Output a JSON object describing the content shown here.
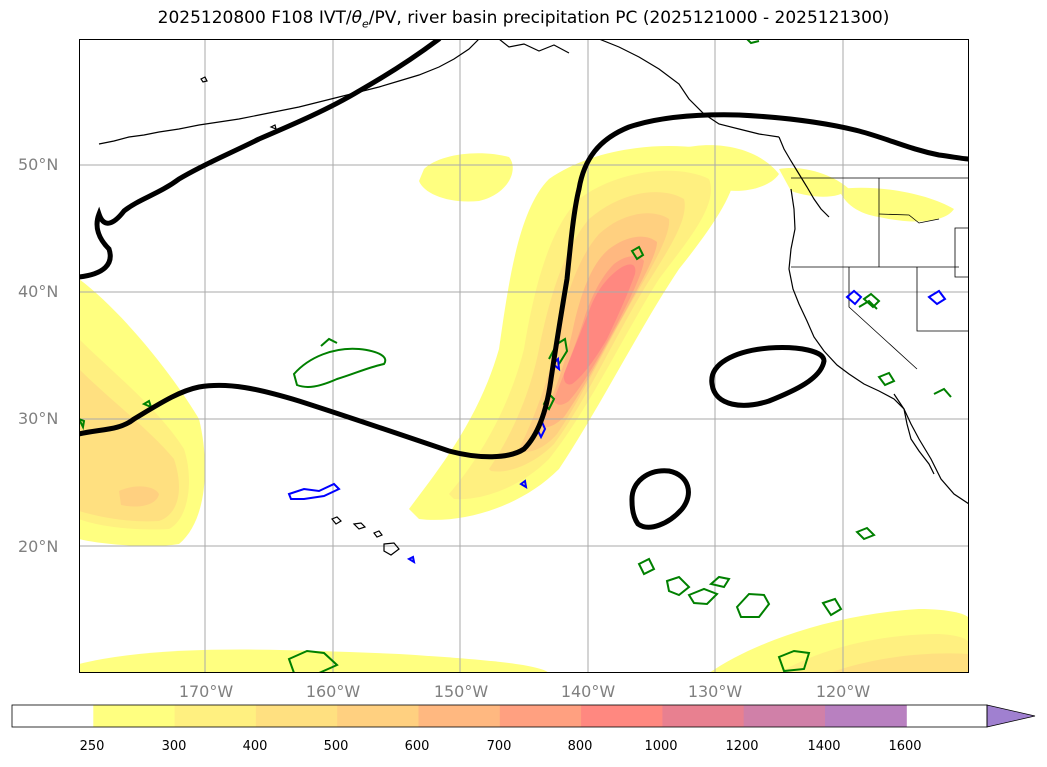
{
  "title": {
    "main": "2025120800 F108 IVT/",
    "theta": "θ",
    "theta_sub": "e",
    "rest": "/PV, river basin precipitation PC (2025121000 - 2025121300)"
  },
  "lat_labels": [
    "50°N",
    "40°N",
    "30°N",
    "20°N"
  ],
  "lon_labels": [
    "170°W",
    "160°W",
    "150°W",
    "140°W",
    "130°W",
    "120°W"
  ],
  "colorbar": {
    "levels": [
      "250",
      "300",
      "400",
      "500",
      "600",
      "700",
      "800",
      "1000",
      "1200",
      "1400",
      "1600"
    ],
    "colors": [
      "#ffffff",
      "#ffff80",
      "#fff080",
      "#ffe080",
      "#ffd080",
      "#ffb880",
      "#ffa080",
      "#ff8880",
      "#e88090",
      "#d080a8",
      "#b880c0",
      "#a080d0"
    ]
  },
  "legend_colors": {
    "dynamic_tropopause": "#000000",
    "theta_e_low": "#0000ff",
    "theta_e_high": "#008000"
  }
}
